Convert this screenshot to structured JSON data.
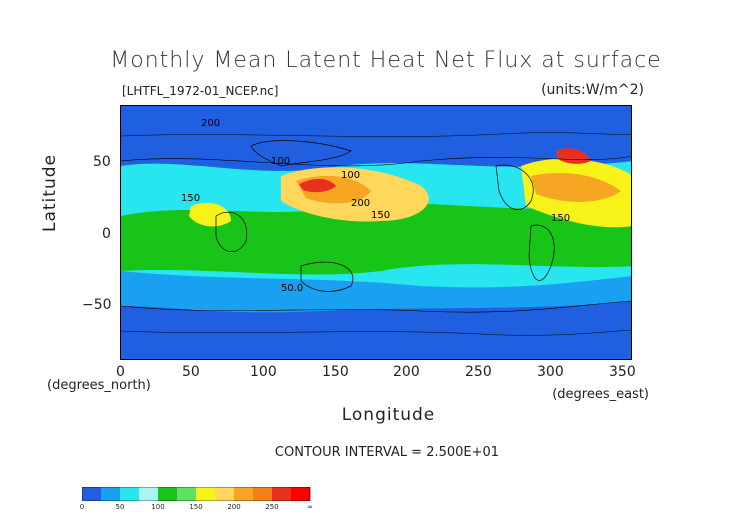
{
  "map": {
    "title": "Monthly Mean Latent Heat Net Flux at surface",
    "file_label": "[LHTFL_1972-01_NCEP.nc]",
    "units_label": "(units:W/m^2)",
    "y_axis_label": "Latitude",
    "x_axis_label": "Longitude",
    "y_unit_label": "(degrees_north)",
    "x_unit_label": "(degrees_east)",
    "contour_interval": "CONTOUR INTERVAL = 2.500E+01",
    "x_ticks": [
      "0",
      "50",
      "100",
      "150",
      "200",
      "250",
      "300",
      "350"
    ],
    "y_ticks": [
      "50",
      "0",
      "−50"
    ],
    "contour_labels": [
      "200",
      "100",
      "100",
      "150",
      "200",
      "150",
      "50.0",
      "150"
    ],
    "colorbar_labels": [
      "0",
      "50",
      "100",
      "150",
      "200",
      "250",
      "∞"
    ],
    "colors": {
      "band_0_25": "#1f5fe0",
      "band_25_50": "#1aa0f0",
      "band_50_75": "#27e6f0",
      "band_75_100": "#a8f5f5",
      "band_100_125": "#19c419",
      "band_125_150": "#60e060",
      "band_150_175": "#f7f21a",
      "band_175_200": "#ffd75a",
      "band_200_225": "#f6a623",
      "band_225_250": "#f48016",
      "band_250_275": "#e83020",
      "band_275_inf": "#ff0000"
    }
  }
}
